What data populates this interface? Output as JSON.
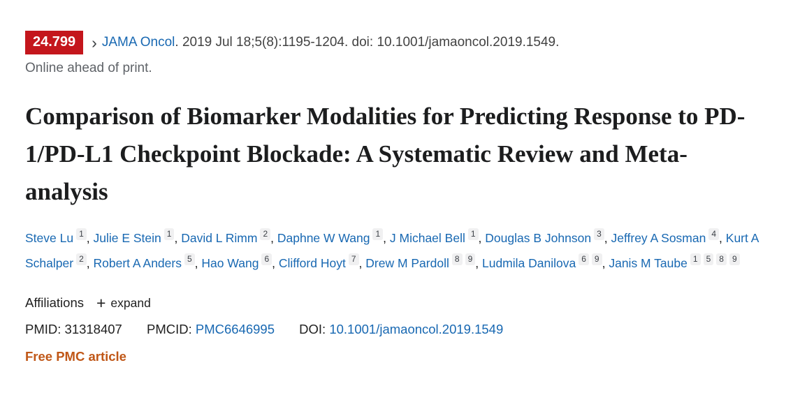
{
  "colors": {
    "impact_badge_bg": "#c4161c",
    "link_blue": "#1868b2",
    "free_pmc_orange": "#c05717"
  },
  "journal_bar": {
    "impact_factor": "24.799",
    "chevron": "›",
    "journal_name": "JAMA Oncol",
    "citation_rest": ". 2019 Jul 18;5(8):1195-1204. doi: 10.1001/jamaoncol.2019.1549.",
    "online_ahead": "Online ahead of print."
  },
  "title": "Comparison of Biomarker Modalities for Predicting Response to PD-1/PD-L1 Checkpoint Blockade: A Systematic Review and Meta-analysis",
  "authors": [
    {
      "name": "Steve Lu",
      "affiliations": [
        "1"
      ]
    },
    {
      "name": "Julie E Stein",
      "affiliations": [
        "1"
      ]
    },
    {
      "name": "David L Rimm",
      "affiliations": [
        "2"
      ]
    },
    {
      "name": "Daphne W Wang",
      "affiliations": [
        "1"
      ]
    },
    {
      "name": "J Michael Bell",
      "affiliations": [
        "1"
      ]
    },
    {
      "name": "Douglas B Johnson",
      "affiliations": [
        "3"
      ]
    },
    {
      "name": "Jeffrey A Sosman",
      "affiliations": [
        "4"
      ]
    },
    {
      "name": "Kurt A Schalper",
      "affiliations": [
        "2"
      ]
    },
    {
      "name": "Robert A Anders",
      "affiliations": [
        "5"
      ]
    },
    {
      "name": "Hao Wang",
      "affiliations": [
        "6"
      ]
    },
    {
      "name": "Clifford Hoyt",
      "affiliations": [
        "7"
      ]
    },
    {
      "name": "Drew M Pardoll",
      "affiliations": [
        "8",
        "9"
      ]
    },
    {
      "name": "Ludmila Danilova",
      "affiliations": [
        "6",
        "9"
      ]
    },
    {
      "name": "Janis M Taube",
      "affiliations": [
        "1",
        "5",
        "8",
        "9"
      ]
    }
  ],
  "affiliations": {
    "label": "Affiliations",
    "expand_icon": "+",
    "expand_label": "expand"
  },
  "identifiers": {
    "pmid_label": "PMID:",
    "pmid_value": "31318407",
    "pmcid_label": "PMCID:",
    "pmcid_value": "PMC6646995",
    "doi_label": "DOI:",
    "doi_value": "10.1001/jamaoncol.2019.1549"
  },
  "free_pmc_label": "Free PMC article"
}
